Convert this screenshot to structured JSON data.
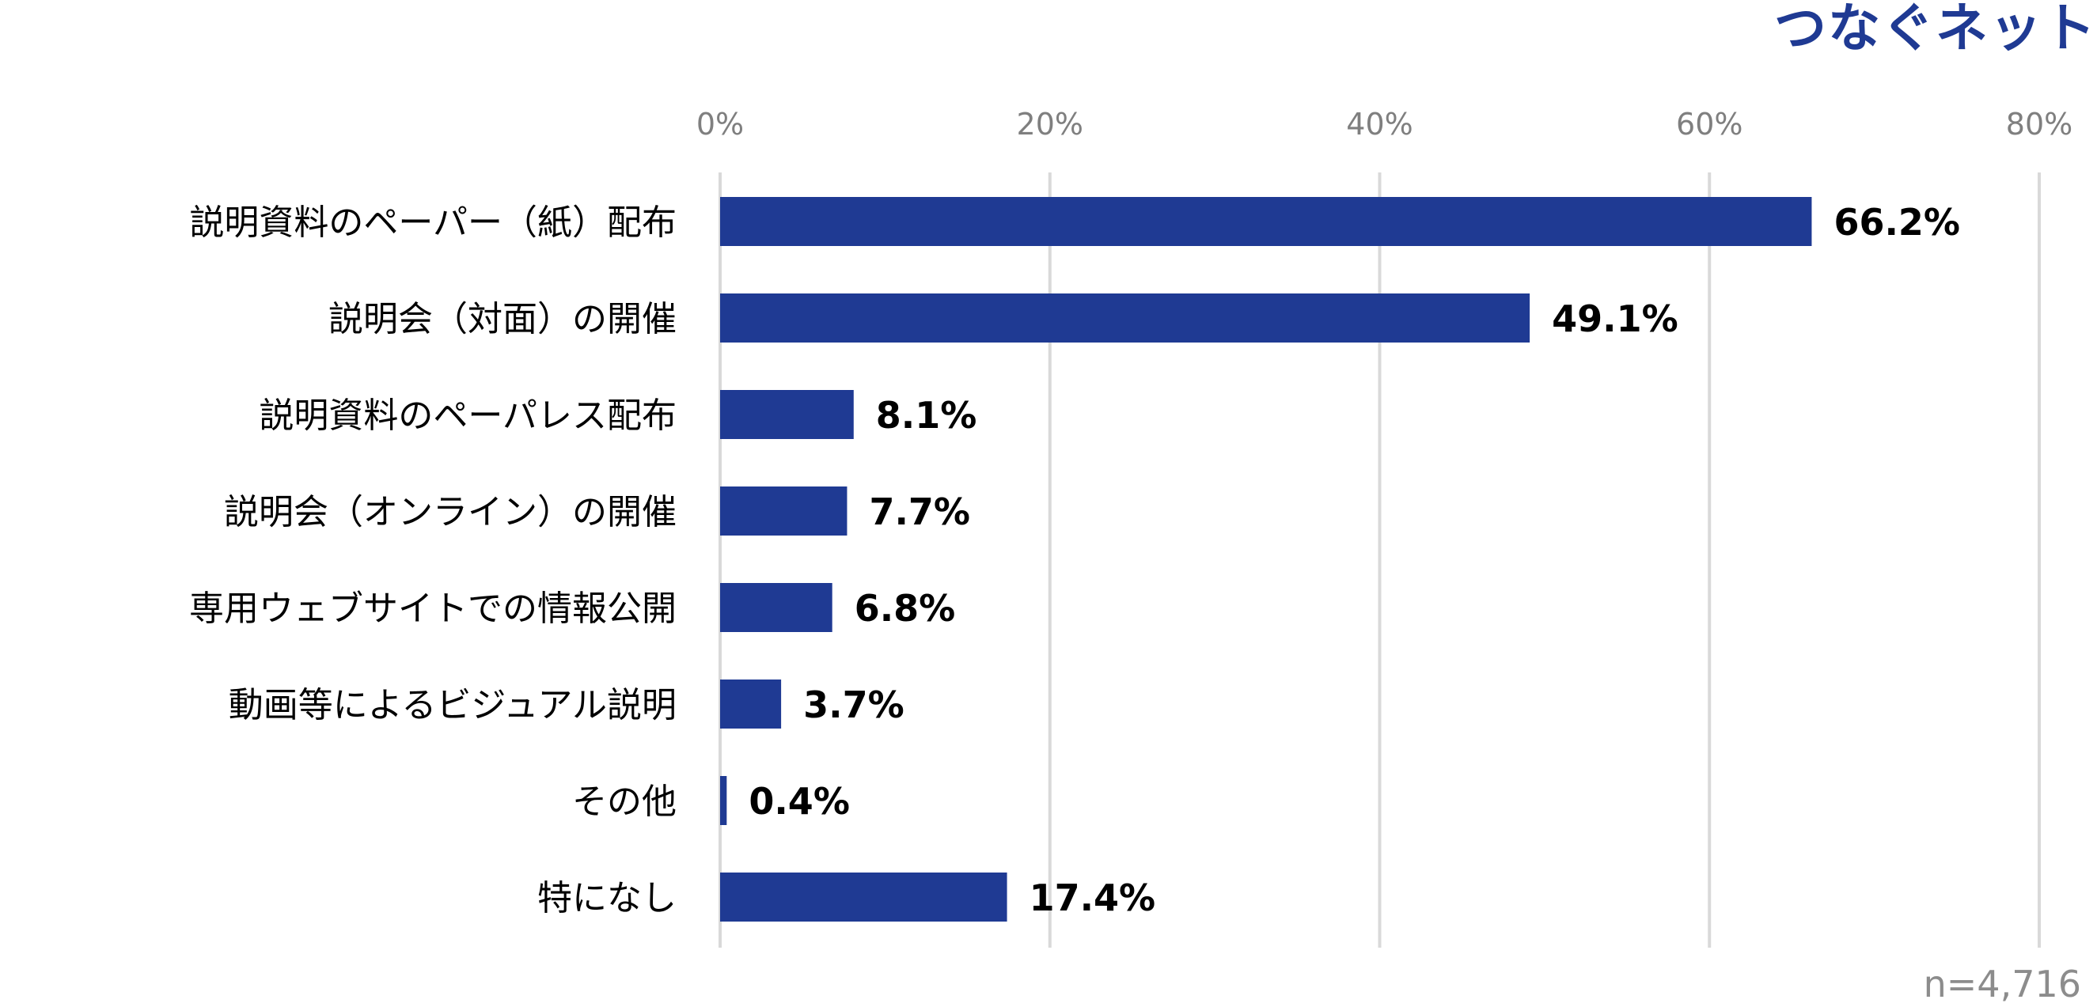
{
  "logo_text": "つなぐネット",
  "sample_note": "n=4,716",
  "chart_data": {
    "type": "bar",
    "orientation": "horizontal",
    "categories": [
      "説明資料のペーパー（紙）配布",
      "説明会（対面）の開催",
      "説明資料のペーパレス配布",
      "説明会（オンライン）の開催",
      "専用ウェブサイトでの情報公開",
      "動画等によるビジュアル説明",
      "その他",
      "特になし"
    ],
    "values": [
      66.2,
      49.1,
      8.1,
      7.7,
      6.8,
      3.7,
      0.4,
      17.4
    ],
    "value_labels": [
      "66.2%",
      "49.1%",
      "8.1%",
      "7.7%",
      "6.8%",
      "3.7%",
      "0.4%",
      "17.4%"
    ],
    "xlim": [
      0,
      80
    ],
    "x_ticks": [
      "0%",
      "20%",
      "40%",
      "60%",
      "80%"
    ],
    "x_tick_values": [
      0,
      20,
      40,
      60,
      80
    ],
    "bar_color": "#1f3a93",
    "grid_color": "#d9d9d9",
    "grid": true,
    "axis_position": "top"
  }
}
